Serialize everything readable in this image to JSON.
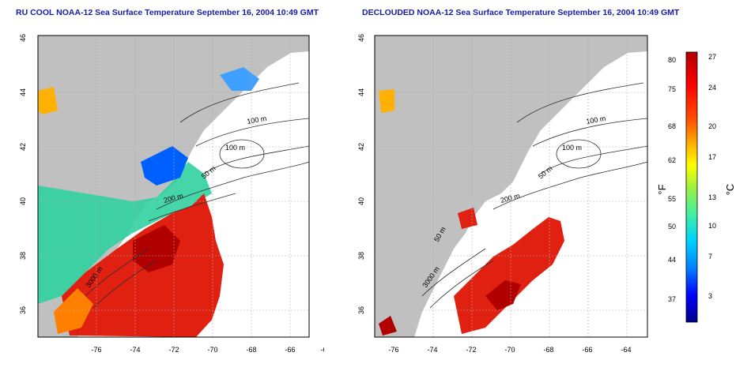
{
  "left_panel": {
    "title": "RU COOL NOAA-12 Sea Surface Temperature September 16, 2004 10:49 GMT",
    "contour_labels": [
      "100 m",
      "100 m",
      "50 m",
      "200 m",
      "3000 m"
    ]
  },
  "right_panel": {
    "title": "DECLOUDED NOAA-12 Sea Surface Temperature September 16, 2004 10:49 GMT",
    "contour_labels": [
      "100 m",
      "100 m",
      "50 m",
      "200 m",
      "50 m",
      "3000 m"
    ]
  },
  "axes": {
    "x_ticks": [
      "-76",
      "-74",
      "-72",
      "-70",
      "-68",
      "-66",
      "-64"
    ],
    "y_ticks": [
      "36",
      "38",
      "40",
      "42",
      "44",
      "46"
    ]
  },
  "colorbar": {
    "fahrenheit_ticks": [
      "80",
      "75",
      "68",
      "62",
      "55",
      "50",
      "44",
      "37"
    ],
    "celsius_ticks": [
      "27",
      "24",
      "20",
      "17",
      "13",
      "10",
      "7",
      "3"
    ],
    "fahrenheit_unit": "°F",
    "celsius_unit": "°C",
    "colors": [
      "#00008b",
      "#0000ff",
      "#0080ff",
      "#00d0ff",
      "#40f0a0",
      "#a0f040",
      "#ffff00",
      "#ffb000",
      "#ff5000",
      "#ff0000",
      "#b00000"
    ]
  },
  "colors": {
    "land": "#c0c0c0",
    "grid": "#b0b0b0",
    "title": "#1a1aa8"
  }
}
